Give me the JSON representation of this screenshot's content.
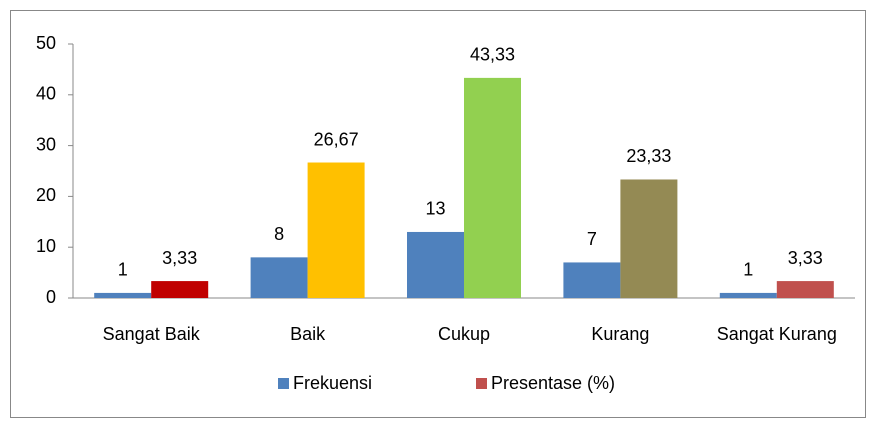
{
  "chart_data": {
    "type": "bar",
    "categories": [
      "Sangat Baik",
      "Baik",
      "Cukup",
      "Kurang",
      "Sangat Kurang"
    ],
    "series": [
      {
        "name": "Frekuensi",
        "color": "#4f81bd",
        "values": [
          1,
          8,
          13,
          7,
          1
        ]
      },
      {
        "name": "Presentase (%)",
        "color": "#c0504d",
        "colors": [
          "#c00000",
          "#ffc000",
          "#92d050",
          "#948a54",
          "#c0504d"
        ],
        "values": [
          3.33,
          26.67,
          43.33,
          23.33,
          3.33
        ],
        "value_labels": [
          "3,33",
          "26,67",
          "43,33",
          "23,33",
          "3,33"
        ]
      }
    ],
    "ylim": [
      0,
      50
    ],
    "yticks": [
      0,
      10,
      20,
      30,
      40,
      50
    ],
    "grid": false,
    "legend": "bottom"
  }
}
